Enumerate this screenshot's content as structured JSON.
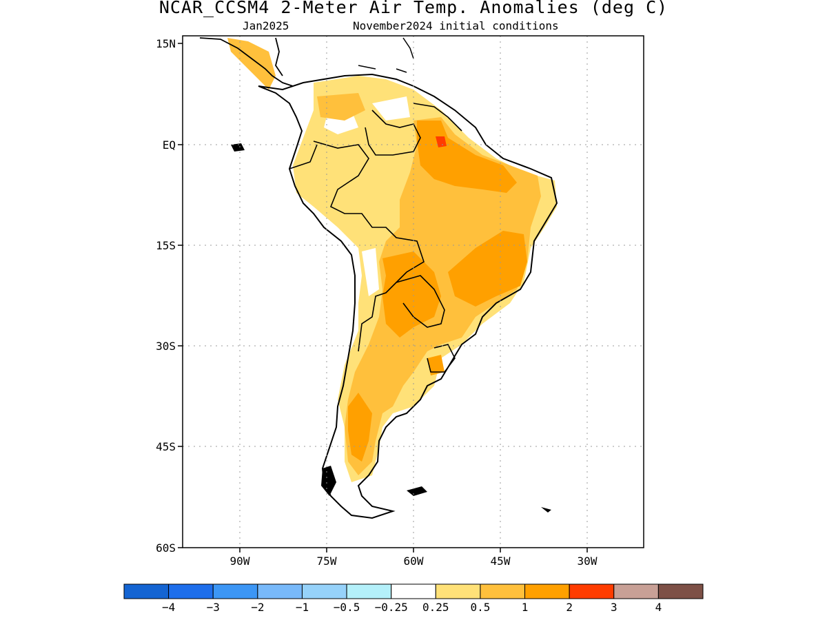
{
  "title": "NCAR_CCSM4 2-Meter Air Temp. Anomalies (deg C)",
  "subtitle_left": "Jan2025",
  "subtitle_right": "November2024 initial conditions",
  "axes": {
    "lat_ticks": [
      "15N",
      "EQ",
      "15S",
      "30S",
      "45S",
      "60S"
    ],
    "lon_ticks": [
      "90W",
      "75W",
      "60W",
      "45W",
      "30W"
    ],
    "grid": "dotted"
  },
  "legend": {
    "labels": [
      "-4",
      "-3",
      "-2",
      "-1",
      "-0.5",
      "-0.25",
      "0.25",
      "0.5",
      "1",
      "2",
      "3",
      "4"
    ],
    "colors": [
      "#1464d2",
      "#1e6eeb",
      "#3c96f5",
      "#78b9fa",
      "#96d2fa",
      "#b4f0fa",
      "#ffffff",
      "#ffe178",
      "#ffc03c",
      "#ffa000",
      "#ff3c00",
      "#c8a096",
      "#7d5046"
    ]
  },
  "colors": {
    "anomaly_0_5": "#ffe178",
    "anomaly_1": "#ffc03c",
    "anomaly_2": "#ffa000",
    "anomaly_3": "#ff3c00"
  }
}
